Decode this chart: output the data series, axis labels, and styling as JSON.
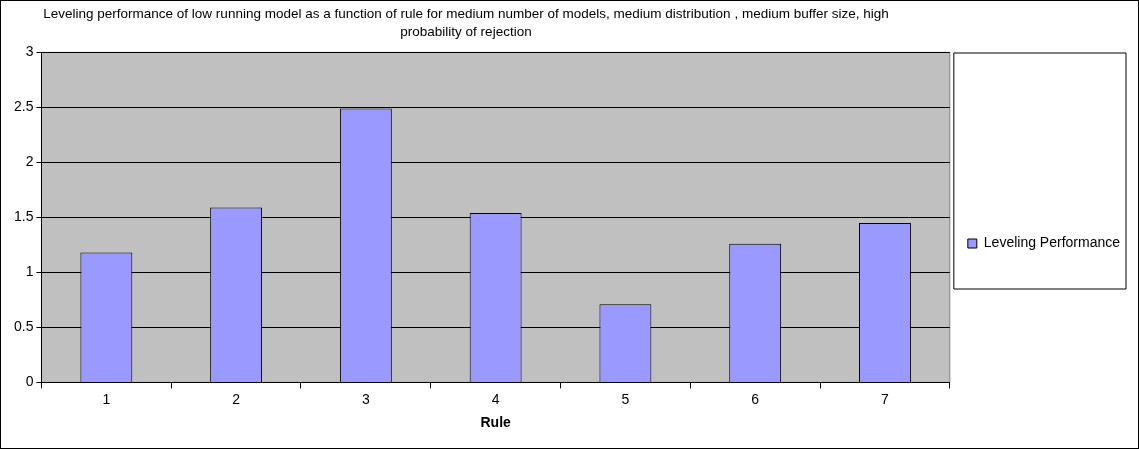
{
  "chart_data": {
    "type": "bar",
    "title": "Leveling performance of low running model as a function of rule for medium number of models, medium distribution , medium buffer size, high probability of rejection",
    "xlabel": "Rule",
    "categories": [
      "1",
      "2",
      "3",
      "4",
      "5",
      "6",
      "7"
    ],
    "series": [
      {
        "name": "Leveling Performance",
        "color": "#9999ff",
        "values": [
          1.18,
          1.59,
          2.49,
          1.54,
          0.71,
          1.26,
          1.45
        ]
      }
    ],
    "ylim": [
      0,
      3
    ],
    "yticks": [
      0,
      0.5,
      1,
      1.5,
      2,
      2.5,
      3
    ],
    "grid": "y",
    "legend": "right"
  }
}
